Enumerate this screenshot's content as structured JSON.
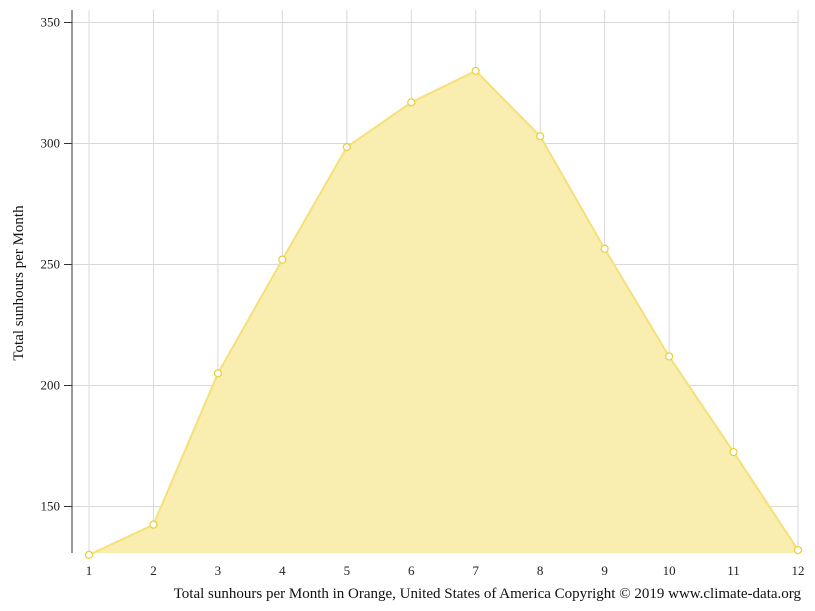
{
  "chart_data": {
    "type": "area",
    "title": "",
    "xlabel": "",
    "ylabel": "Total sunhours per Month",
    "caption": "Total sunhours per Month in Orange, United States of America Copyright © 2019 www.climate-data.org",
    "x": [
      1,
      2,
      3,
      4,
      5,
      6,
      7,
      8,
      9,
      10,
      11,
      12
    ],
    "x_tick_labels": [
      "1",
      "2",
      "3",
      "4",
      "5",
      "6",
      "7",
      "8",
      "9",
      "10",
      "11",
      "12"
    ],
    "series": [
      {
        "values": [
          130,
          142.5,
          205,
          252,
          298.5,
          317,
          330,
          303,
          256.5,
          212,
          172.5,
          132
        ]
      }
    ],
    "ylim": [
      130,
      355
    ],
    "y_ticks": [
      150,
      200,
      250,
      300,
      350
    ],
    "y_tick_labels": [
      "150",
      "200",
      "250",
      "300",
      "350"
    ],
    "grid": true,
    "legend": "none",
    "colors": {
      "fill": "#f9eeb0",
      "line": "#f5e07a",
      "marker_stroke": "#e8cf3a",
      "marker_fill": "#ffffff",
      "grid": "#d8d8d8",
      "axis": "#333333"
    }
  }
}
